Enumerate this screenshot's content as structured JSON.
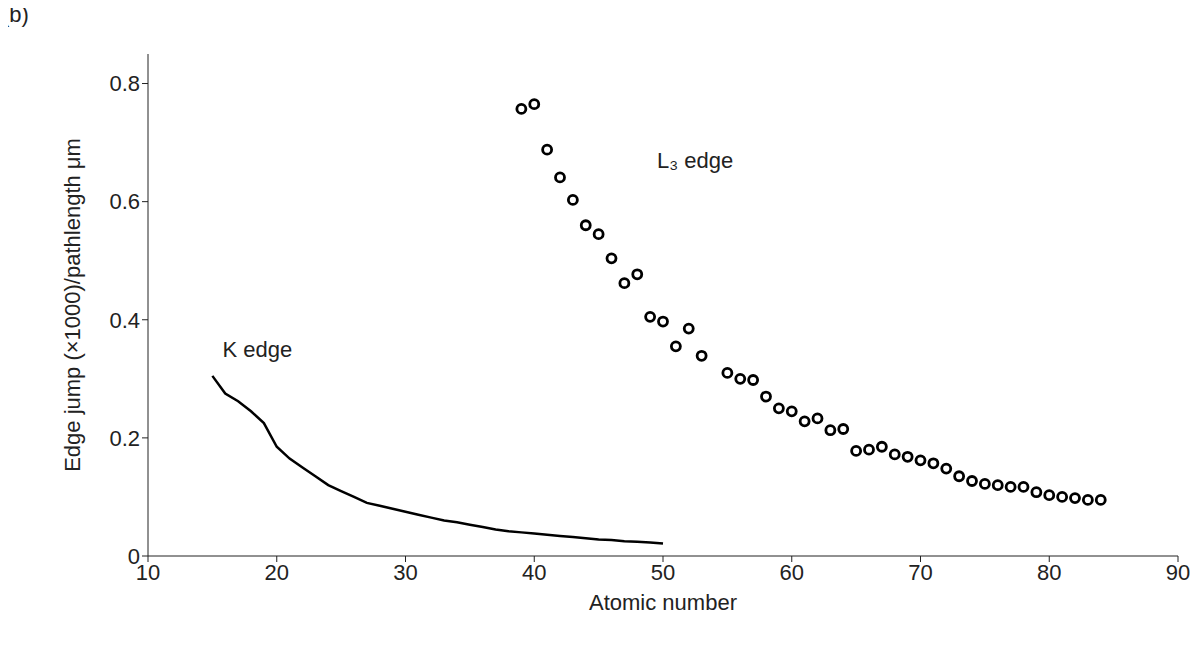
{
  "chart_data": {
    "type": "line",
    "title": "(b)",
    "x_label": "Atomic number",
    "y_label": "Edge jump (×1000)/pathlength μm",
    "xlim": [
      10,
      90
    ],
    "xticks": [
      10,
      20,
      30,
      40,
      50,
      60,
      70,
      80,
      90
    ],
    "ylim": [
      0,
      0.85
    ],
    "yticks": [
      0,
      0.2,
      0.4,
      0.6,
      0.8
    ],
    "grid": false,
    "series": [
      {
        "type": "line",
        "color": "#000000",
        "marker": "none",
        "line_style": "solid",
        "x": [
          15,
          16,
          17,
          18,
          19,
          20,
          21,
          22,
          23,
          24,
          25,
          26,
          27,
          28,
          29,
          30,
          31,
          32,
          33,
          34,
          35,
          36,
          37,
          38,
          39,
          40,
          41,
          42,
          43,
          44,
          45,
          46,
          47,
          48,
          49,
          50
        ],
        "values": [
          0.305,
          0.275,
          0.262,
          0.245,
          0.225,
          0.185,
          0.165,
          0.15,
          0.135,
          0.12,
          0.11,
          0.1,
          0.09,
          0.085,
          0.08,
          0.075,
          0.07,
          0.065,
          0.06,
          0.057,
          0.053,
          0.049,
          0.045,
          0.042,
          0.04,
          0.038,
          0.036,
          0.034,
          0.032,
          0.03,
          0.028,
          0.027,
          0.025,
          0.024,
          0.023,
          0.021
        ]
      },
      {
        "type": "scatter",
        "color": "#000000",
        "marker": "circle",
        "x": [
          39,
          40,
          41,
          42,
          43,
          44,
          45,
          46,
          47,
          48,
          49,
          50,
          51,
          52,
          53,
          55,
          56,
          57,
          58,
          59,
          60,
          61,
          62,
          63,
          64,
          65,
          66,
          67,
          68,
          69,
          70,
          71,
          72,
          73,
          74,
          75,
          76,
          77,
          78,
          79,
          80,
          81,
          82,
          83,
          84
        ],
        "values": [
          0.757,
          0.765,
          0.688,
          0.641,
          0.603,
          0.56,
          0.545,
          0.504,
          0.462,
          0.477,
          0.405,
          0.397,
          0.355,
          0.385,
          0.339,
          0.31,
          0.3,
          0.298,
          0.27,
          0.25,
          0.245,
          0.228,
          0.233,
          0.213,
          0.215,
          0.178,
          0.18,
          0.185,
          0.172,
          0.168,
          0.162,
          0.157,
          0.148,
          0.135,
          0.127,
          0.122,
          0.12,
          0.117,
          0.117,
          0.108,
          0.103,
          0.1,
          0.098,
          0.095,
          0.095
        ]
      }
    ],
    "annotations": [
      {
        "text": "K edge",
        "x": 18.5,
        "y": 0.35
      },
      {
        "text": "L₃ edge",
        "x": 52.5,
        "y": 0.67
      }
    ]
  }
}
